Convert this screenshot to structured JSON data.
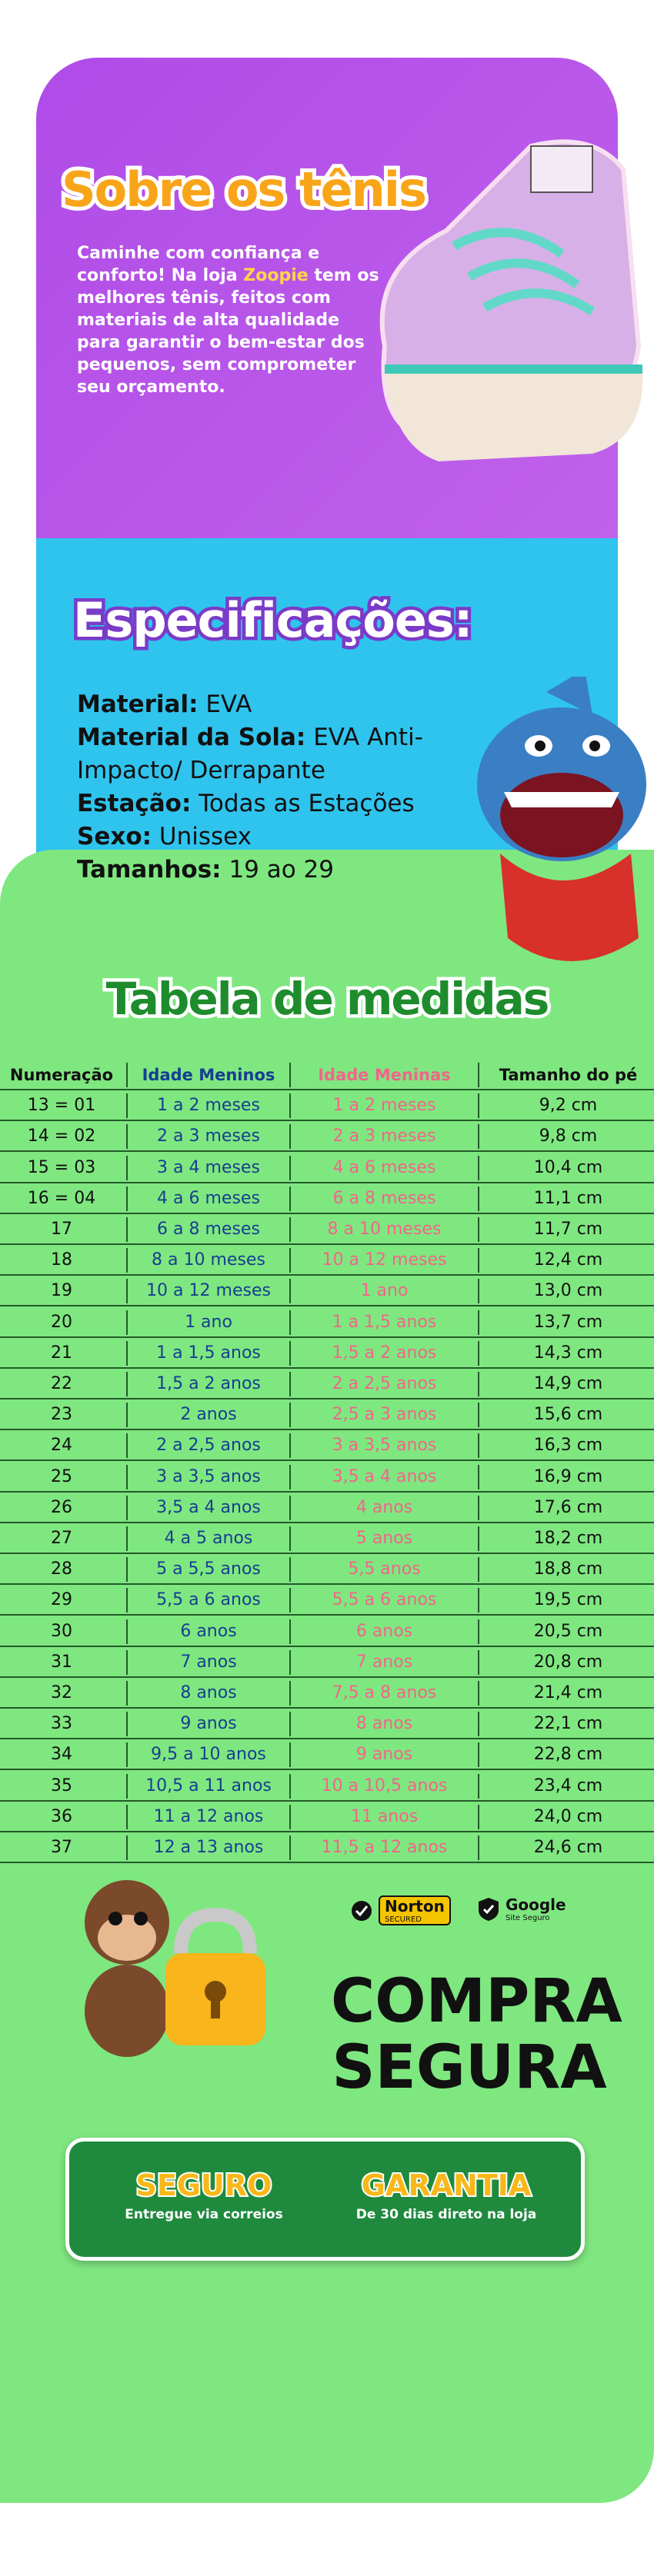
{
  "about": {
    "title": "Sobre os tênis",
    "text_parts": [
      "Caminhe com confiança e conforto! Na loja ",
      "Zoopie",
      " tem os melhores tênis, feitos com materiais de alta qualidade para garantir o bem-estar dos pequenos, sem comprometer seu orçamento."
    ]
  },
  "specs": {
    "title": "Especificações:",
    "items": [
      {
        "label": "Material:",
        "value": "EVA"
      },
      {
        "label": "Material da Sola:",
        "value": "EVA Anti-Impacto/ Derrapante"
      },
      {
        "label": "Estação:",
        "value": "Todas as Estações"
      },
      {
        "label": "Sexo:",
        "value": "Unissex"
      },
      {
        "label": "Tamanhos:",
        "value": "19 ao 29"
      }
    ]
  },
  "table": {
    "title": "Tabela de medidas",
    "headers": [
      "Numeração",
      "Idade Meninos",
      "Idade Meninas",
      "Tamanho do pé"
    ],
    "rows": [
      [
        "13 = 01",
        "1 a 2 meses",
        "1 a 2 meses",
        "9,2 cm"
      ],
      [
        "14 = 02",
        "2 a 3 meses",
        "2 a 3 meses",
        "9,8 cm"
      ],
      [
        "15 = 03",
        "3 a 4 meses",
        "4 a 6 meses",
        "10,4 cm"
      ],
      [
        "16 = 04",
        "4 a 6 meses",
        "6 a 8 meses",
        "11,1 cm"
      ],
      [
        "17",
        "6 a 8 meses",
        "8 a 10 meses",
        "11,7 cm"
      ],
      [
        "18",
        "8 a 10 meses",
        "10 a 12 meses",
        "12,4 cm"
      ],
      [
        "19",
        "10 a 12 meses",
        "1 ano",
        "13,0 cm"
      ],
      [
        "20",
        "1 ano",
        "1 a 1,5 anos",
        "13,7 cm"
      ],
      [
        "21",
        "1 a 1,5 anos",
        "1,5 a 2 anos",
        "14,3 cm"
      ],
      [
        "22",
        "1,5 a 2 anos",
        "2 a 2,5 anos",
        "14,9 cm"
      ],
      [
        "23",
        "2 anos",
        "2,5 a 3 anos",
        "15,6 cm"
      ],
      [
        "24",
        "2 a 2,5 anos",
        "3 a 3,5 anos",
        "16,3 cm"
      ],
      [
        "25",
        "3 a 3,5 anos",
        "3,5 a 4 anos",
        "16,9 cm"
      ],
      [
        "26",
        "3,5 a 4 anos",
        "4 anos",
        "17,6 cm"
      ],
      [
        "27",
        "4 a 5 anos",
        "5 anos",
        "18,2 cm"
      ],
      [
        "28",
        "5 a 5,5 anos",
        "5,5 anos",
        "18,8 cm"
      ],
      [
        "29",
        "5,5 a 6 anos",
        "5,5 a 6 anos",
        "19,5 cm"
      ],
      [
        "30",
        "6 anos",
        "6 anos",
        "20,5 cm"
      ],
      [
        "31",
        "7 anos",
        "7 anos",
        "20,8 cm"
      ],
      [
        "32",
        "8 anos",
        "7,5 a 8 anos",
        "21,4 cm"
      ],
      [
        "33",
        "9 anos",
        "8 anos",
        "22,1 cm"
      ],
      [
        "34",
        "9,5 a 10 anos",
        "9 anos",
        "22,8 cm"
      ],
      [
        "35",
        "10,5 a 11 anos",
        "10 a 10,5 anos",
        "23,4 cm"
      ],
      [
        "36",
        "11 a 12 anos",
        "11 anos",
        "24,0 cm"
      ],
      [
        "37",
        "12 a 13 anos",
        "11,5 a 12 anos",
        "24,6 cm"
      ]
    ]
  },
  "security": {
    "badges": [
      {
        "name": "Norton",
        "sub": "SECURED"
      },
      {
        "name": "Google",
        "sub": "Site Seguro"
      }
    ],
    "headline": [
      "COMPRA",
      "SEGURA"
    ]
  },
  "guarantees": [
    {
      "title": "SEGURO",
      "text": "Entregue via correios"
    },
    {
      "title": "GARANTIA",
      "text": "De 30 dias direto na loja"
    }
  ]
}
